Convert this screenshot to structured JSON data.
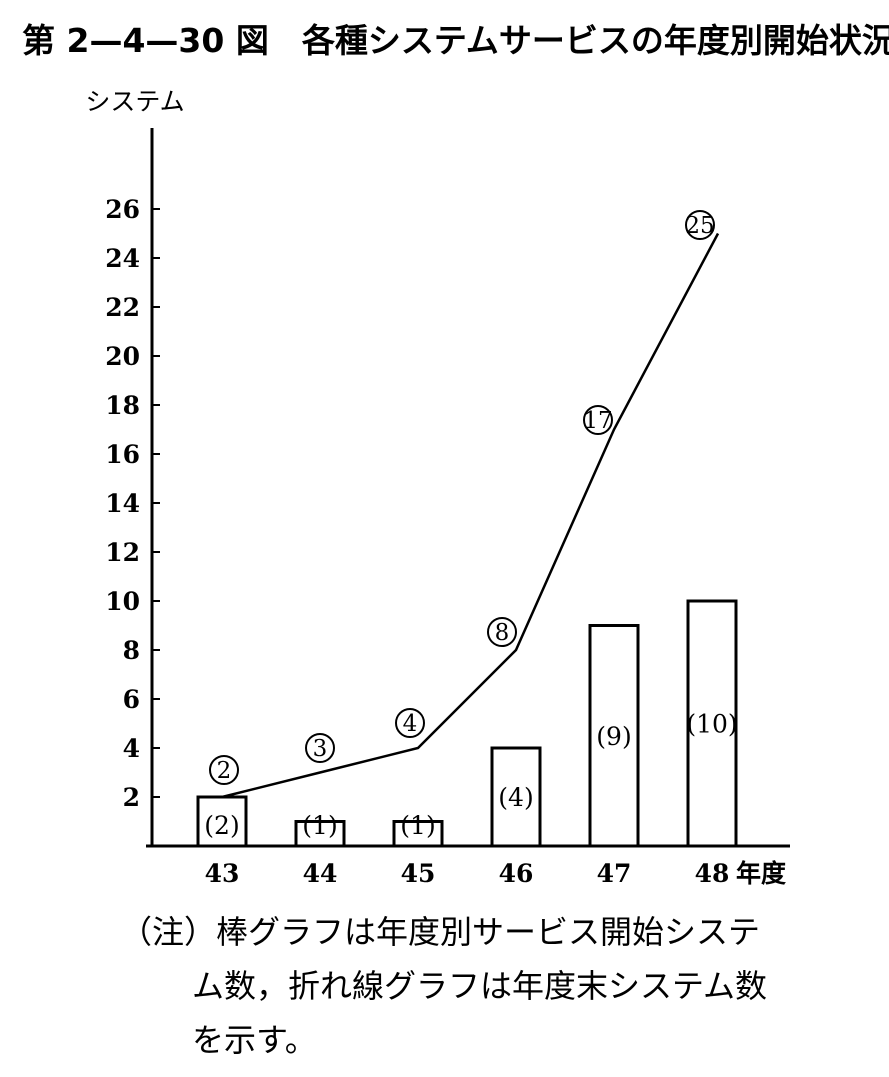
{
  "title": "第 2—4—30 図　各種システムサービスの年度別開始状況",
  "note": {
    "prefix": "（注）",
    "line1": "棒グラフは年度別サービス開始システ",
    "line2": "ム数，折れ線グラフは年度末システム数",
    "line3": "を示す。"
  },
  "chart_data": {
    "type": "bar+line",
    "categories": [
      "43",
      "44",
      "45",
      "46",
      "47",
      "48"
    ],
    "xlabel": "年度",
    "ylabel": "システム",
    "yticks": [
      2,
      4,
      6,
      8,
      10,
      12,
      14,
      16,
      18,
      20,
      22,
      24,
      26
    ],
    "ylim": [
      0,
      26
    ],
    "series": [
      {
        "type": "bar",
        "values": [
          2,
          1,
          1,
          4,
          9,
          10
        ],
        "labels": [
          "(2)",
          "(1)",
          "(1)",
          "(4)",
          "(9)",
          "(10)"
        ]
      },
      {
        "type": "line",
        "values": [
          2,
          3,
          4,
          8,
          17,
          25
        ],
        "labels": [
          "2",
          "3",
          "4",
          "8",
          "17",
          "25"
        ]
      }
    ]
  }
}
